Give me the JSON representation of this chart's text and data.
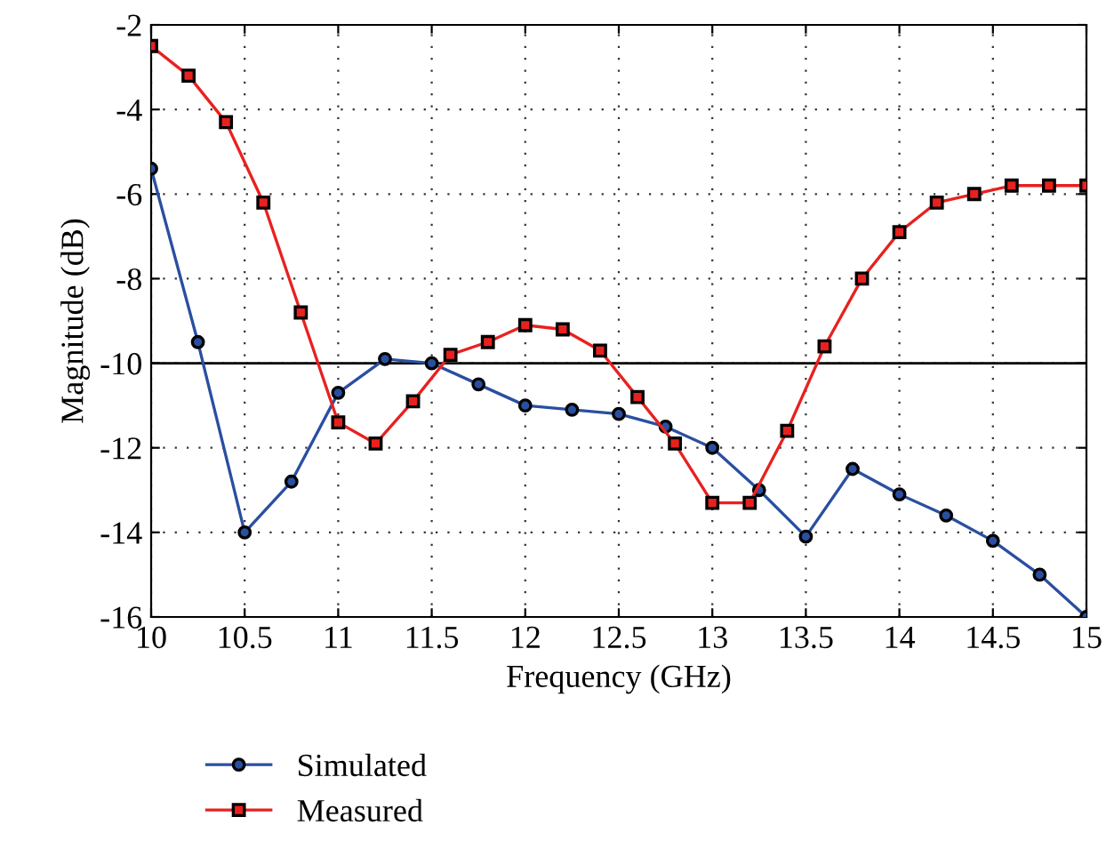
{
  "chart_data": {
    "type": "line",
    "xlabel": "Frequency (GHz)",
    "ylabel": "Magnitude (dB)",
    "xlim": [
      10,
      15
    ],
    "xticks": [
      10,
      10.5,
      11,
      11.5,
      12,
      12.5,
      13,
      13.5,
      14,
      14.5,
      15
    ],
    "ylim": [
      -16,
      -2
    ],
    "yticks": [
      -16,
      -14,
      -12,
      -10,
      -8,
      -6,
      -4,
      -2
    ],
    "grid": true,
    "legend": "bottom",
    "ref_lines": [
      {
        "axis": "y",
        "value": -10,
        "color": "#000000",
        "line_style": "solid"
      }
    ],
    "series": [
      {
        "name": "Simulated",
        "color": "#2a4fa0",
        "marker": "circle",
        "x": [
          10,
          10.25,
          10.5,
          10.75,
          11,
          11.25,
          11.5,
          11.75,
          12,
          12.25,
          12.5,
          12.75,
          13,
          13.25,
          13.5,
          13.75,
          14,
          14.25,
          14.5,
          14.75,
          15
        ],
        "values": [
          -5.4,
          -9.5,
          -14.0,
          -12.8,
          -10.7,
          -9.9,
          -10.0,
          -10.5,
          -11.0,
          -11.1,
          -11.2,
          -11.5,
          -12.0,
          -13.0,
          -14.1,
          -12.5,
          -13.1,
          -13.6,
          -14.2,
          -15.0,
          -16.0
        ]
      },
      {
        "name": "Measured",
        "color": "#e8211f",
        "marker": "square",
        "x": [
          10,
          10.2,
          10.4,
          10.6,
          10.8,
          11,
          11.2,
          11.4,
          11.6,
          11.8,
          12,
          12.2,
          12.4,
          12.6,
          12.8,
          13,
          13.2,
          13.4,
          13.6,
          13.8,
          14,
          14.2,
          14.4,
          14.6,
          14.8,
          15
        ],
        "values": [
          -2.5,
          -3.2,
          -4.3,
          -6.2,
          -8.8,
          -11.4,
          -11.9,
          -10.9,
          -9.8,
          -9.5,
          -9.1,
          -9.2,
          -9.7,
          -10.8,
          -11.9,
          -13.3,
          -13.3,
          -11.6,
          -9.6,
          -8.0,
          -6.9,
          -6.2,
          -6.0,
          -5.8,
          -5.8,
          -5.8
        ]
      }
    ]
  }
}
